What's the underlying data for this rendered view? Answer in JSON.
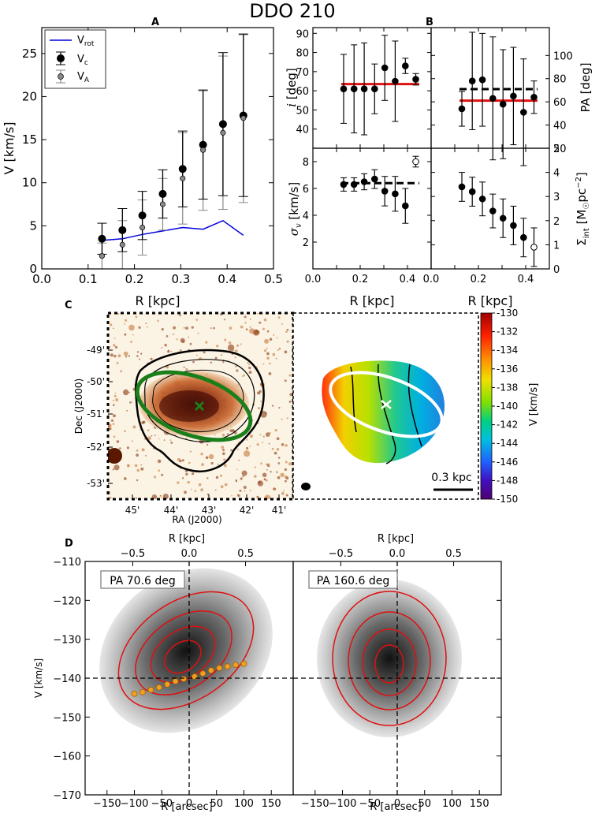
{
  "title": "DDO 210",
  "panels": {
    "A": "A",
    "B": "B",
    "C": "C",
    "D": "D"
  },
  "chart_data": [
    {
      "id": "A",
      "type": "scatter",
      "xlabel": "R [kpc]",
      "ylabel": "V [km/s]",
      "xlim": [
        0.0,
        0.5
      ],
      "ylim": [
        0,
        28
      ],
      "xticks": [
        "0.0",
        "0.1",
        "0.2",
        "0.3",
        "0.4",
        "0.5"
      ],
      "yticks": [
        "0",
        "5",
        "10",
        "15",
        "20",
        "25"
      ],
      "legend": {
        "position": "top-left",
        "entries": [
          "V_rot",
          "V_c",
          "V_A"
        ]
      },
      "legend_text": {
        "vrot": "V",
        "vrot_sub": "rot",
        "vc": "V",
        "vc_sub": "c",
        "va": "V",
        "va_sub": "A"
      },
      "series": [
        {
          "name": "V_rot",
          "style": "line",
          "color": "#0000dd",
          "x": [
            0.13,
            0.174,
            0.217,
            0.261,
            0.304,
            0.348,
            0.391,
            0.435
          ],
          "y": [
            3.3,
            3.5,
            4.0,
            4.4,
            4.8,
            4.6,
            5.6,
            3.9
          ]
        },
        {
          "name": "V_c",
          "style": "points-errorbars",
          "x": [
            0.13,
            0.174,
            0.217,
            0.261,
            0.304,
            0.348,
            0.391,
            0.435
          ],
          "y": [
            3.5,
            4.5,
            6.2,
            8.7,
            11.6,
            14.4,
            16.8,
            17.8
          ],
          "err": [
            1.8,
            2.5,
            2.8,
            2.8,
            4.4,
            6.3,
            8.3,
            9.4
          ]
        },
        {
          "name": "V_A",
          "style": "points-errorbars",
          "color": "#888888",
          "x": [
            0.13,
            0.174,
            0.217,
            0.261,
            0.304,
            0.348,
            0.391,
            0.435
          ],
          "y": [
            1.5,
            2.8,
            4.8,
            7.5,
            10.5,
            13.8,
            15.8,
            17.5
          ],
          "err": [
            1.5,
            2.8,
            3.2,
            3.0,
            5.3,
            7.0,
            8.9,
            9.8
          ]
        }
      ]
    },
    {
      "id": "B-inclination",
      "type": "scatter",
      "ylabel": "i [deg]",
      "xlim": [
        0.0,
        0.5
      ],
      "ylim": [
        30,
        93
      ],
      "yticks": [
        "40",
        "50",
        "60",
        "70",
        "80",
        "90"
      ],
      "x": [
        0.13,
        0.174,
        0.217,
        0.261,
        0.304,
        0.348,
        0.391,
        0.435
      ],
      "y": [
        61,
        61,
        61,
        61,
        72,
        65,
        73,
        66
      ],
      "err": [
        18,
        23,
        24,
        13,
        17,
        21,
        4,
        3
      ],
      "avg_line": 63.5
    },
    {
      "id": "B-position-angle",
      "type": "scatter",
      "ylabel": "PA [deg]",
      "xlim": [
        0.0,
        0.5
      ],
      "ylim": [
        20,
        124
      ],
      "yticks": [
        "20",
        "40",
        "60",
        "80",
        "100"
      ],
      "x": [
        0.13,
        0.174,
        0.217,
        0.261,
        0.304,
        0.348,
        0.391,
        0.435
      ],
      "y": [
        54,
        78,
        79,
        63,
        58,
        65,
        51,
        64
      ],
      "err": [
        15,
        42,
        40,
        53,
        47,
        42,
        46,
        14
      ],
      "avg_dashed": 71,
      "avg_solid": 61
    },
    {
      "id": "B-dispersion",
      "type": "scatter",
      "ylabel": "σ_v [km/s]",
      "xlim": [
        0.0,
        0.5
      ],
      "ylim": [
        0,
        9
      ],
      "yticks": [
        "2",
        "4",
        "6",
        "8"
      ],
      "xticks": [
        "0.0",
        "0.2",
        "0.4"
      ],
      "xlabel": "R [kpc]",
      "x": [
        0.13,
        0.174,
        0.217,
        0.261,
        0.304,
        0.348,
        0.391,
        0.435
      ],
      "y": [
        6.3,
        6.3,
        6.5,
        6.7,
        5.8,
        5.6,
        4.7,
        8.0
      ],
      "err": [
        0.5,
        0.5,
        0.6,
        0.7,
        1.1,
        1.3,
        1.3,
        0.4
      ],
      "open_point_index": 7,
      "avg_dashed": 6.4
    },
    {
      "id": "B-surface-density",
      "type": "scatter",
      "ylabel": "Σ_int [M☉pc⁻²]",
      "xlim": [
        0.0,
        0.5
      ],
      "ylim": [
        0,
        5
      ],
      "yticks": [
        "0",
        "1",
        "2",
        "3",
        "4",
        "5"
      ],
      "xticks": [
        "0.0",
        "0.2",
        "0.4"
      ],
      "xlabel": "R [kpc]",
      "x": [
        0.13,
        0.174,
        0.217,
        0.261,
        0.304,
        0.348,
        0.391,
        0.435
      ],
      "y": [
        3.4,
        3.2,
        2.9,
        2.4,
        2.1,
        1.8,
        1.3,
        0.9
      ],
      "err": [
        0.6,
        0.6,
        0.7,
        0.7,
        0.8,
        0.8,
        0.8,
        0.8
      ],
      "open_point_index": 7
    },
    {
      "id": "C-image",
      "type": "heatmap",
      "xlabel": "RA (J2000)",
      "ylabel": "Dec (J2000)",
      "xticks": [
        "45'",
        "44'",
        "43'",
        "42'",
        "41'"
      ],
      "yticks": [
        "-49'",
        "-50'",
        "-51'",
        "-52'",
        "-53'"
      ]
    },
    {
      "id": "C-velocity-field",
      "type": "heatmap",
      "colorbar_label": "V [km/s]",
      "colorbar_ticks": [
        "-130",
        "-132",
        "-134",
        "-136",
        "-138",
        "-140",
        "-142",
        "-144",
        "-146",
        "-148",
        "-150"
      ],
      "scale_bar": "0.3 kpc"
    },
    {
      "id": "D-pv-major",
      "type": "heatmap",
      "label": "PA 70.6 deg",
      "xlabel": "R [arcsec]",
      "ylabel": "V [km/s]",
      "top_xlabel": "R [kpc]",
      "xticks": [
        "−150",
        "−100",
        "−50",
        "0",
        "50",
        "100",
        "150"
      ],
      "top_xticks": [
        "−0.5",
        "0.0",
        "0.5"
      ],
      "yticks": [
        "−110",
        "−120",
        "−130",
        "−140",
        "−150",
        "−160",
        "−170"
      ],
      "xlim": [
        -190,
        190
      ],
      "ylim": [
        -170,
        -110
      ],
      "rotation_points": {
        "x": [
          -100,
          -85,
          -70,
          -55,
          -40,
          -25,
          -10,
          10,
          25,
          40,
          55,
          70,
          85,
          100
        ],
        "y": [
          -144,
          -143.6,
          -143,
          -142.4,
          -141.6,
          -140.8,
          -140.2,
          -139.6,
          -138.8,
          -138,
          -137.4,
          -137,
          -136.6,
          -136.3
        ]
      }
    },
    {
      "id": "D-pv-minor",
      "type": "heatmap",
      "label": "PA 160.6 deg",
      "xlabel": "R [arcsec]",
      "top_xlabel": "R [kpc]",
      "xticks": [
        "−150",
        "−100",
        "−50",
        "0",
        "50",
        "100",
        "150"
      ],
      "top_xticks": [
        "−0.5",
        "0.0",
        "0.5"
      ],
      "xlim": [
        -190,
        190
      ],
      "ylim": [
        -170,
        -110
      ]
    }
  ]
}
